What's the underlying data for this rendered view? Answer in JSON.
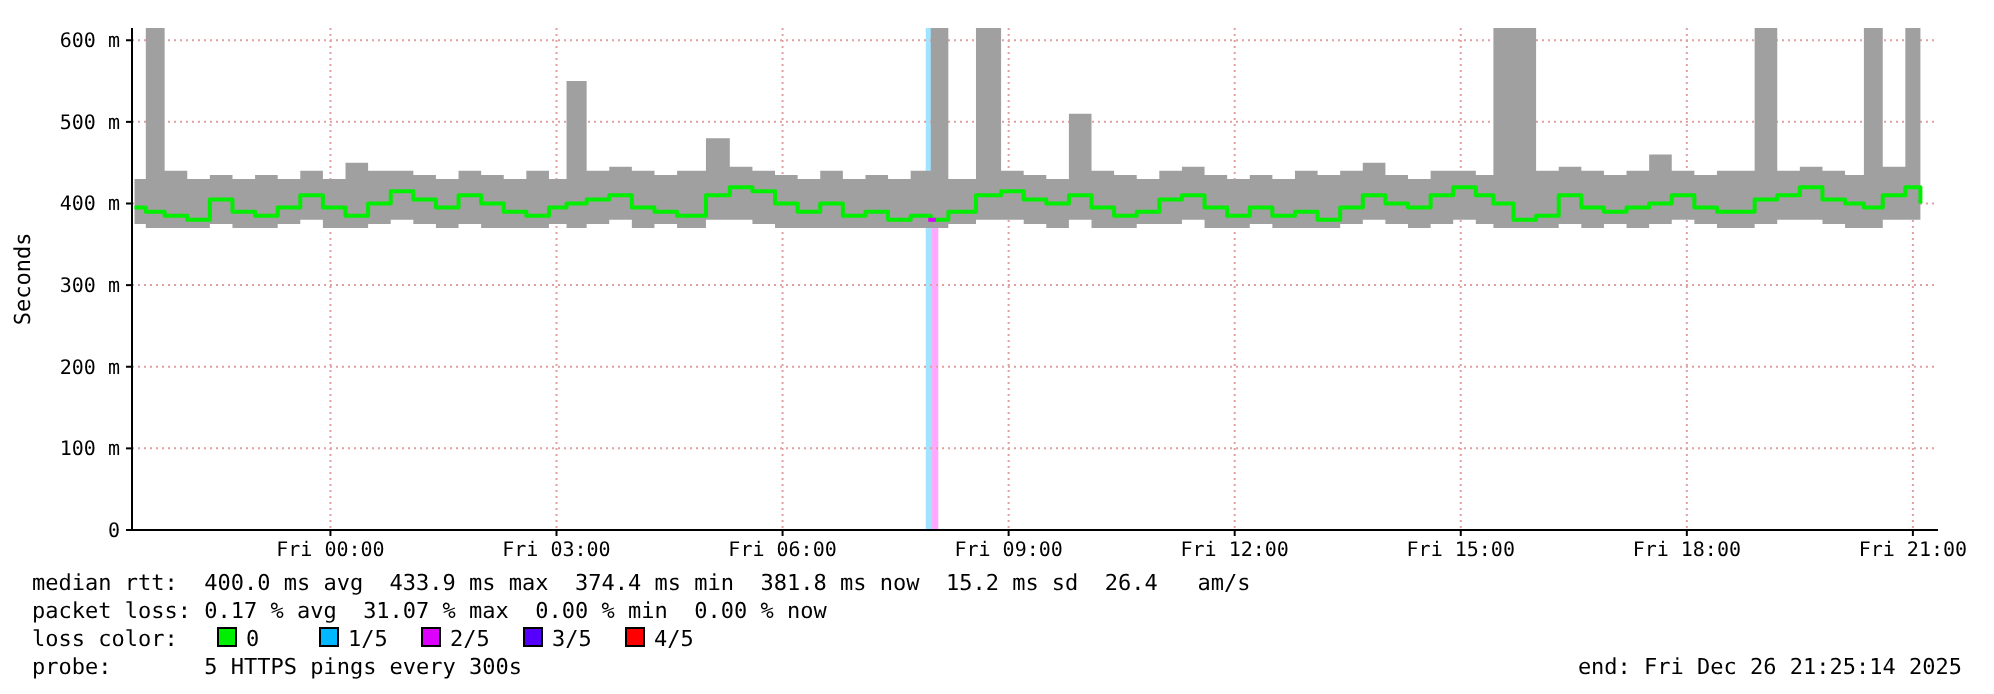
{
  "chart_data": {
    "type": "step",
    "ylabel": "Seconds",
    "xlim": [
      "2025-12-25T21:22",
      "2025-12-26T21:20"
    ],
    "ylim": [
      0,
      615
    ],
    "xticks": [
      {
        "value": "2025-12-26T00:00",
        "label": "Fri 00:00"
      },
      {
        "value": "2025-12-26T03:00",
        "label": "Fri 03:00"
      },
      {
        "value": "2025-12-26T06:00",
        "label": "Fri 06:00"
      },
      {
        "value": "2025-12-26T09:00",
        "label": "Fri 09:00"
      },
      {
        "value": "2025-12-26T12:00",
        "label": "Fri 12:00"
      },
      {
        "value": "2025-12-26T15:00",
        "label": "Fri 15:00"
      },
      {
        "value": "2025-12-26T18:00",
        "label": "Fri 18:00"
      },
      {
        "value": "2025-12-26T21:00",
        "label": "Fri 21:00"
      }
    ],
    "yticks": [
      0,
      {
        "value": 100,
        "label": "100 m"
      },
      {
        "value": 200,
        "label": "200 m"
      },
      {
        "value": 300,
        "label": "300 m"
      },
      {
        "value": 400,
        "label": "400 m"
      },
      {
        "value": 500,
        "label": "500 m"
      },
      {
        "value": 600,
        "label": "600 m"
      }
    ],
    "grid": true,
    "legend": "bottom",
    "legend_title": "loss color:",
    "x": [
      "2025-12-25T21:24",
      "2025-12-25T21:33",
      "2025-12-25T21:48",
      "2025-12-25T22:06",
      "2025-12-25T22:24",
      "2025-12-25T22:42",
      "2025-12-25T23:00",
      "2025-12-25T23:18",
      "2025-12-25T23:36",
      "2025-12-25T23:54",
      "2025-12-26T00:12",
      "2025-12-26T00:30",
      "2025-12-26T00:48",
      "2025-12-26T01:06",
      "2025-12-26T01:24",
      "2025-12-26T01:42",
      "2025-12-26T02:00",
      "2025-12-26T02:18",
      "2025-12-26T02:36",
      "2025-12-26T02:54",
      "2025-12-26T03:08",
      "2025-12-26T03:24",
      "2025-12-26T03:42",
      "2025-12-26T04:00",
      "2025-12-26T04:18",
      "2025-12-26T04:36",
      "2025-12-26T04:59",
      "2025-12-26T05:18",
      "2025-12-26T05:36",
      "2025-12-26T05:54",
      "2025-12-26T06:12",
      "2025-12-26T06:30",
      "2025-12-26T06:48",
      "2025-12-26T07:06",
      "2025-12-26T07:24",
      "2025-12-26T07:42",
      "2025-12-26T07:58",
      "2025-12-26T08:12",
      "2025-12-26T08:34",
      "2025-12-26T08:54",
      "2025-12-26T09:12",
      "2025-12-26T09:30",
      "2025-12-26T09:48",
      "2025-12-26T10:06",
      "2025-12-26T10:24",
      "2025-12-26T10:42",
      "2025-12-26T11:00",
      "2025-12-26T11:18",
      "2025-12-26T11:36",
      "2025-12-26T11:54",
      "2025-12-26T12:12",
      "2025-12-26T12:30",
      "2025-12-26T12:48",
      "2025-12-26T13:06",
      "2025-12-26T13:24",
      "2025-12-26T13:42",
      "2025-12-26T14:00",
      "2025-12-26T14:18",
      "2025-12-26T14:36",
      "2025-12-26T14:54",
      "2025-12-26T15:12",
      "2025-12-26T15:26",
      "2025-12-26T15:42",
      "2025-12-26T16:00",
      "2025-12-26T16:18",
      "2025-12-26T16:36",
      "2025-12-26T16:54",
      "2025-12-26T17:12",
      "2025-12-26T17:30",
      "2025-12-26T17:48",
      "2025-12-26T18:06",
      "2025-12-26T18:24",
      "2025-12-26T18:54",
      "2025-12-26T19:12",
      "2025-12-26T19:30",
      "2025-12-26T19:48",
      "2025-12-26T20:06",
      "2025-12-26T20:21",
      "2025-12-26T20:36",
      "2025-12-26T20:54",
      "2025-12-26T21:06"
    ],
    "series": [
      {
        "name": "0",
        "color": "#00ee00",
        "values": [
          395,
          390,
          385,
          380,
          405,
          390,
          385,
          395,
          410,
          395,
          385,
          400,
          415,
          405,
          395,
          410,
          400,
          390,
          385,
          395,
          400,
          405,
          410,
          395,
          390,
          385,
          410,
          420,
          415,
          400,
          390,
          400,
          385,
          390,
          380,
          385,
          380,
          390,
          410,
          415,
          405,
          400,
          410,
          395,
          385,
          390,
          405,
          410,
          395,
          385,
          395,
          385,
          390,
          380,
          395,
          410,
          400,
          395,
          410,
          420,
          410,
          400,
          380,
          385,
          410,
          395,
          390,
          395,
          400,
          410,
          395,
          390,
          405,
          410,
          420,
          405,
          400,
          395,
          410,
          420,
          400
        ],
        "lower": [
          375,
          370,
          370,
          370,
          375,
          370,
          370,
          375,
          380,
          370,
          370,
          375,
          380,
          375,
          370,
          375,
          370,
          370,
          370,
          375,
          370,
          375,
          380,
          370,
          375,
          370,
          380,
          380,
          375,
          370,
          370,
          370,
          370,
          370,
          370,
          370,
          370,
          375,
          380,
          380,
          375,
          370,
          380,
          370,
          370,
          375,
          375,
          380,
          370,
          370,
          375,
          370,
          370,
          370,
          375,
          380,
          375,
          370,
          375,
          380,
          375,
          370,
          370,
          370,
          375,
          370,
          375,
          370,
          375,
          380,
          375,
          370,
          375,
          380,
          380,
          375,
          370,
          370,
          380,
          380,
          370
        ],
        "upper": [
          430,
          615,
          440,
          430,
          435,
          430,
          435,
          430,
          440,
          430,
          450,
          440,
          440,
          435,
          430,
          440,
          435,
          430,
          440,
          430,
          550,
          440,
          445,
          440,
          435,
          440,
          480,
          445,
          440,
          435,
          430,
          440,
          430,
          435,
          430,
          440,
          615,
          430,
          615,
          440,
          435,
          430,
          510,
          440,
          435,
          430,
          440,
          445,
          435,
          430,
          435,
          430,
          440,
          435,
          440,
          450,
          435,
          430,
          440,
          440,
          435,
          615,
          615,
          440,
          445,
          440,
          435,
          440,
          460,
          440,
          435,
          440,
          615,
          440,
          445,
          440,
          435,
          615,
          445,
          615,
          440
        ]
      },
      {
        "name": "1/5",
        "color": "#00b8ff",
        "values": [
          null,
          null,
          null,
          null,
          null,
          null,
          null,
          null,
          null,
          null,
          null,
          null,
          null,
          null,
          null,
          null,
          null,
          null,
          null,
          null,
          null,
          null,
          null,
          null,
          null,
          null,
          null,
          null,
          null,
          null,
          null,
          null,
          null,
          null,
          null,
          null,
          null,
          null,
          null,
          null,
          null,
          null,
          null,
          null,
          null,
          null,
          null,
          null,
          null,
          null,
          null,
          null,
          null,
          null,
          null,
          null,
          null,
          null,
          null,
          null,
          null,
          null,
          null,
          null,
          null,
          null,
          null,
          null,
          null,
          null,
          null,
          null,
          null,
          null,
          null,
          null,
          null,
          null,
          null,
          null,
          null
        ]
      },
      {
        "name": "2/5",
        "color": "#dd00ff",
        "x": [
          "2025-12-26T07:56",
          "2025-12-26T08:02"
        ],
        "values": [
          380,
          380
        ]
      },
      {
        "name": "3/5",
        "color": "#5500ff",
        "values": [
          null,
          null,
          null,
          null,
          null,
          null,
          null,
          null,
          null,
          null,
          null,
          null,
          null,
          null,
          null,
          null,
          null,
          null,
          null,
          null,
          null,
          null,
          null,
          null,
          null,
          null,
          null,
          null,
          null,
          null,
          null,
          null,
          null,
          null,
          null,
          null,
          null,
          null,
          null,
          null,
          null,
          null,
          null,
          null,
          null,
          null,
          null,
          null,
          null,
          null,
          null,
          null,
          null,
          null,
          null,
          null,
          null,
          null,
          null,
          null,
          null,
          null,
          null,
          null,
          null,
          null,
          null,
          null,
          null,
          null,
          null,
          null,
          null,
          null,
          null,
          null,
          null,
          null,
          null,
          null,
          null
        ]
      },
      {
        "name": "4/5",
        "color": "#ff0000",
        "values": [
          null,
          null,
          null,
          null,
          null,
          null,
          null,
          null,
          null,
          null,
          null,
          null,
          null,
          null,
          null,
          null,
          null,
          null,
          null,
          null,
          null,
          null,
          null,
          null,
          null,
          null,
          null,
          null,
          null,
          null,
          null,
          null,
          null,
          null,
          null,
          null,
          null,
          null,
          null,
          null,
          null,
          null,
          null,
          null,
          null,
          null,
          null,
          null,
          null,
          null,
          null,
          null,
          null,
          null,
          null,
          null,
          null,
          null,
          null,
          null,
          null,
          null,
          null,
          null,
          null,
          null,
          null,
          null,
          null,
          null,
          null,
          null,
          null,
          null,
          null,
          null,
          null,
          null,
          null,
          null,
          null
        ]
      }
    ],
    "bands": [
      {
        "axis": "x",
        "from": "2025-12-26T07:54",
        "to": "2025-12-26T07:59",
        "color": "#a0e4ff"
      },
      {
        "axis": "x",
        "from": "2025-12-26T07:59",
        "to": "2025-12-26T08:04",
        "color": "#ffa8ff"
      }
    ],
    "annotations": [
      "median rtt:  400.0 ms avg  433.9 ms max  374.4 ms min  381.8 ms now  15.2 ms sd  26.4   am/s",
      "packet loss: 0.17 % avg  31.07 % max  0.00 % min  0.00 % now",
      "probe:       5 HTTPS pings every 300s",
      "end: Fri Dec 26 21:25:14 2025"
    ]
  }
}
